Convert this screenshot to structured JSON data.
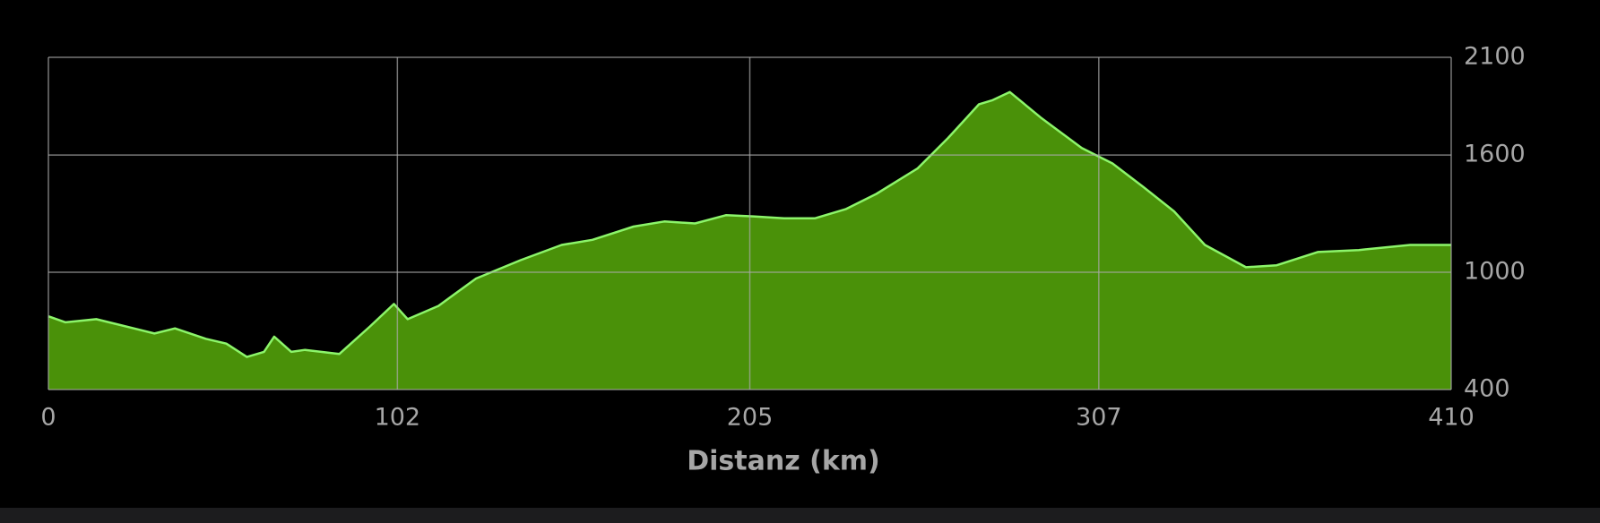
{
  "chart_data": {
    "type": "area",
    "x_label": "Distanz (km)",
    "x": [
      0,
      5,
      14,
      25,
      31,
      37,
      46,
      52,
      58,
      63,
      66,
      71,
      75,
      85,
      94,
      101,
      105,
      114,
      125,
      138,
      150,
      159,
      171,
      180,
      189,
      198,
      206,
      215,
      224,
      233,
      242,
      254,
      263,
      272,
      276,
      281,
      290,
      302,
      311,
      320,
      329,
      338,
      350,
      359,
      371,
      383,
      398,
      410
    ],
    "values": [
      775,
      744,
      760,
      713,
      687,
      713,
      660,
      635,
      567,
      593,
      671,
      593,
      603,
      582,
      723,
      838,
      760,
      828,
      968,
      1062,
      1140,
      1166,
      1234,
      1260,
      1250,
      1292,
      1286,
      1276,
      1276,
      1323,
      1401,
      1531,
      1688,
      1860,
      1881,
      1922,
      1792,
      1636,
      1557,
      1437,
      1312,
      1140,
      1026,
      1036,
      1104,
      1114,
      1140,
      1140
    ],
    "color": "#4a9109",
    "line_color": "#8cf56a",
    "xlim": [
      0,
      410
    ],
    "xticks": [
      0,
      102,
      205,
      307,
      410
    ],
    "ylim": [
      400,
      2100
    ],
    "yticks": [
      400,
      1000,
      1600,
      2100
    ],
    "y_axis_side": "right",
    "grid": true
  }
}
